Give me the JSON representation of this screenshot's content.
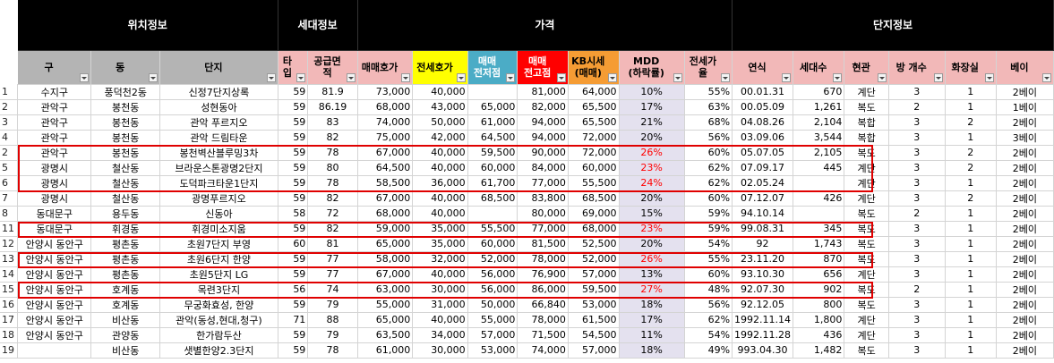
{
  "group_headers": {
    "location": "위치정보",
    "household": "세대정보",
    "price": "가격",
    "complex": "단지정보"
  },
  "columns": [
    {
      "label": "구",
      "bg": "#b4b4b4"
    },
    {
      "label": "동",
      "bg": "#b4b4b4"
    },
    {
      "label": "단지",
      "bg": "#b4b4b4"
    },
    {
      "label": "타입",
      "bg": "#f2b8b8"
    },
    {
      "label": "공급면적",
      "bg": "#f2b8b8"
    },
    {
      "label": "매매호가",
      "bg": "#f2b8b8"
    },
    {
      "label": "전세호가",
      "bg": "#ffff00"
    },
    {
      "label": "매매\n전저점",
      "bg": "#4bacc6",
      "color": "#ffffff"
    },
    {
      "label": "매매\n전고점",
      "bg": "#ff0000",
      "color": "#ffffff"
    },
    {
      "label": "KB시세\n(매매)",
      "bg": "#f59c34"
    },
    {
      "label": "MDD\n(하락률)",
      "bg": "#f2b8b8"
    },
    {
      "label": "전세가율",
      "bg": "#f2b8b8"
    },
    {
      "label": "연식",
      "bg": "#f2b8b8"
    },
    {
      "label": "세대수",
      "bg": "#f2b8b8"
    },
    {
      "label": "현관",
      "bg": "#f2b8b8"
    },
    {
      "label": "방 개수",
      "bg": "#f2b8b8"
    },
    {
      "label": "화장실",
      "bg": "#f2b8b8"
    },
    {
      "label": "베이",
      "bg": "#f2b8b8"
    }
  ],
  "rows": [
    {
      "n": "1",
      "gu": "수지구",
      "dong": "풍덕천2동",
      "danji": "신정7단지상록",
      "type": "59",
      "area": "81.9",
      "sale": "73,000",
      "jeonse": "40,000",
      "low": "",
      "high": "81,000",
      "kb": "64,000",
      "mdd": "10%",
      "ratio": "55%",
      "year": "00.01.31",
      "hh": "670",
      "hall": "계단",
      "rooms": "3",
      "bath": "1",
      "bay": "2베이",
      "red": false
    },
    {
      "n": "2",
      "gu": "관악구",
      "dong": "봉천동",
      "danji": "성현동아",
      "type": "59",
      "area": "86.19",
      "sale": "68,000",
      "jeonse": "43,000",
      "low": "65,000",
      "high": "82,000",
      "kb": "65,500",
      "mdd": "17%",
      "ratio": "63%",
      "year": "00.05.09",
      "hh": "1,261",
      "hall": "복도",
      "rooms": "2",
      "bath": "1",
      "bay": "1베이",
      "red": false
    },
    {
      "n": "3",
      "gu": "관악구",
      "dong": "봉천동",
      "danji": "관악 푸르지오",
      "type": "59",
      "area": "83",
      "sale": "74,000",
      "jeonse": "50,000",
      "low": "61,000",
      "high": "94,000",
      "kb": "65,500",
      "mdd": "21%",
      "ratio": "68%",
      "year": "04.08.26",
      "hh": "2,104",
      "hall": "복합",
      "rooms": "3",
      "bath": "2",
      "bay": "2베이",
      "red": false
    },
    {
      "n": "4",
      "gu": "관악구",
      "dong": "봉천동",
      "danji": "관악 드림타운",
      "type": "59",
      "area": "82",
      "sale": "75,000",
      "jeonse": "42,000",
      "low": "64,500",
      "high": "94,000",
      "kb": "72,000",
      "mdd": "20%",
      "ratio": "56%",
      "year": "03.09.06",
      "hh": "3,544",
      "hall": "복합",
      "rooms": "3",
      "bath": "1",
      "bay": "3베이",
      "red": false
    },
    {
      "n": "2",
      "gu": "관악구",
      "dong": "봉천동",
      "danji": "봉천벽산블루밍3차",
      "type": "59",
      "area": "78",
      "sale": "67,000",
      "jeonse": "40,000",
      "low": "59,500",
      "high": "90,000",
      "kb": "72,000",
      "mdd": "26%",
      "ratio": "60%",
      "year": "05.07.05",
      "hh": "2,105",
      "hall": "복도",
      "rooms": "3",
      "bath": "2",
      "bay": "2베이",
      "red": true
    },
    {
      "n": "5",
      "gu": "광명시",
      "dong": "철산동",
      "danji": "브라운스톤광명2단지",
      "type": "59",
      "area": "80",
      "sale": "64,500",
      "jeonse": "40,000",
      "low": "60,000",
      "high": "84,000",
      "kb": "60,000",
      "mdd": "23%",
      "ratio": "62%",
      "year": "07.09.17",
      "hh": "445",
      "hall": "계단",
      "rooms": "3",
      "bath": "2",
      "bay": "2베이",
      "red": true
    },
    {
      "n": "6",
      "gu": "광명시",
      "dong": "철산동",
      "danji": "도덕파크타운1단지",
      "type": "59",
      "area": "78",
      "sale": "58,500",
      "jeonse": "36,000",
      "low": "61,700",
      "high": "77,000",
      "kb": "55,500",
      "mdd": "24%",
      "ratio": "62%",
      "year": "02.05.24",
      "hh": "",
      "hall": "계단",
      "rooms": "3",
      "bath": "1",
      "bay": "2베이",
      "red": true
    },
    {
      "n": "7",
      "gu": "광명시",
      "dong": "철산동",
      "danji": "광명푸르지오",
      "type": "59",
      "area": "82",
      "sale": "67,000",
      "jeonse": "40,000",
      "low": "68,500",
      "high": "83,800",
      "kb": "68,500",
      "mdd": "20%",
      "ratio": "60%",
      "year": "07.12.07",
      "hh": "426",
      "hall": "계단",
      "rooms": "3",
      "bath": "2",
      "bay": "2베이",
      "red": false
    },
    {
      "n": "8",
      "gu": "동대문구",
      "dong": "용두동",
      "danji": "신동아",
      "type": "58",
      "area": "72",
      "sale": "68,000",
      "jeonse": "40,000",
      "low": "",
      "high": "80,000",
      "kb": "69,000",
      "mdd": "15%",
      "ratio": "59%",
      "year": "94.10.14",
      "hh": "",
      "hall": "복도",
      "rooms": "2",
      "bath": "1",
      "bay": "2베이",
      "red": false
    },
    {
      "n": "11",
      "gu": "동대문구",
      "dong": "휘경동",
      "danji": "휘경미소지움",
      "type": "59",
      "area": "82",
      "sale": "59,000",
      "jeonse": "35,000",
      "low": "55,500",
      "high": "77,000",
      "kb": "68,000",
      "mdd": "23%",
      "ratio": "59%",
      "year": "99.08.31",
      "hh": "345",
      "hall": "복도",
      "rooms": "3",
      "bath": "1",
      "bay": "2베이",
      "red": true
    },
    {
      "n": "12",
      "gu": "안양시 동안구",
      "dong": "평촌동",
      "danji": "초원7단지 부영",
      "type": "60",
      "area": "81",
      "sale": "65,000",
      "jeonse": "35,000",
      "low": "60,000",
      "high": "81,500",
      "kb": "52,500",
      "mdd": "20%",
      "ratio": "54%",
      "year": "92",
      "hh": "1,743",
      "hall": "복도",
      "rooms": "3",
      "bath": "1",
      "bay": "2베이",
      "red": false
    },
    {
      "n": "13",
      "gu": "안양시 동안구",
      "dong": "평촌동",
      "danji": "초원6단지 한양",
      "type": "59",
      "area": "77",
      "sale": "58,000",
      "jeonse": "32,000",
      "low": "52,000",
      "high": "78,000",
      "kb": "52,000",
      "mdd": "26%",
      "ratio": "55%",
      "year": "23.11.20",
      "hh": "870",
      "hall": "복도",
      "rooms": "3",
      "bath": "1",
      "bay": "2베이",
      "red": true
    },
    {
      "n": "14",
      "gu": "안양시 동안구",
      "dong": "평촌동",
      "danji": "초원5단지 LG",
      "type": "59",
      "area": "77",
      "sale": "67,000",
      "jeonse": "40,000",
      "low": "56,000",
      "high": "76,900",
      "kb": "57,000",
      "mdd": "13%",
      "ratio": "60%",
      "year": "93.10.30",
      "hh": "656",
      "hall": "계단",
      "rooms": "3",
      "bath": "1",
      "bay": "2베이",
      "red": false
    },
    {
      "n": "15",
      "gu": "안양시 동안구",
      "dong": "호계동",
      "danji": "목련3단지",
      "type": "56",
      "area": "74",
      "sale": "63,000",
      "jeonse": "30,000",
      "low": "56,000",
      "high": "86,000",
      "kb": "59,500",
      "mdd": "27%",
      "ratio": "48%",
      "year": "92.07.30",
      "hh": "902",
      "hall": "복도",
      "rooms": "2",
      "bath": "1",
      "bay": "2베이",
      "red": true
    },
    {
      "n": "16",
      "gu": "안양시 동안구",
      "dong": "호계동",
      "danji": "무궁화효성, 한양",
      "type": "59",
      "area": "79",
      "sale": "55,000",
      "jeonse": "31,000",
      "low": "50,000",
      "high": "66,840",
      "kb": "53,000",
      "mdd": "18%",
      "ratio": "56%",
      "year": "92.12.05",
      "hh": "800",
      "hall": "복도",
      "rooms": "3",
      "bath": "1",
      "bay": "2베이",
      "red": false
    },
    {
      "n": "17",
      "gu": "안양시 동안구",
      "dong": "비산동",
      "danji": "관악(동성,현대,청구)",
      "type": "71",
      "area": "88",
      "sale": "65,000",
      "jeonse": "40,000",
      "low": "55,000",
      "high": "78,000",
      "kb": "61,500",
      "mdd": "17%",
      "ratio": "62%",
      "year": "1992.11.14",
      "hh": "1,800",
      "hall": "계단",
      "rooms": "3",
      "bath": "1",
      "bay": "2베이",
      "red": false
    },
    {
      "n": "18",
      "gu": "안양시 동안구",
      "dong": "관양동",
      "danji": "한가람두산",
      "type": "59",
      "area": "79",
      "sale": "63,500",
      "jeonse": "34,000",
      "low": "57,000",
      "high": "71,500",
      "kb": "54,500",
      "mdd": "11%",
      "ratio": "54%",
      "year": "1992.11.28",
      "hh": "436",
      "hall": "계단",
      "rooms": "3",
      "bath": "1",
      "bay": "2베이",
      "red": false
    },
    {
      "n": "19",
      "gu": "",
      "dong": "비산동",
      "danji": "샛별한양2.3단지",
      "type": "59",
      "area": "78",
      "sale": "61,000",
      "jeonse": "30,000",
      "low": "53,000",
      "high": "74,000",
      "kb": "57,000",
      "mdd": "18%",
      "ratio": "49%",
      "year": "993.04.30",
      "hh": "1,482",
      "hall": "복도",
      "rooms": "3",
      "bath": "1",
      "bay": "2베이",
      "red": false
    }
  ]
}
